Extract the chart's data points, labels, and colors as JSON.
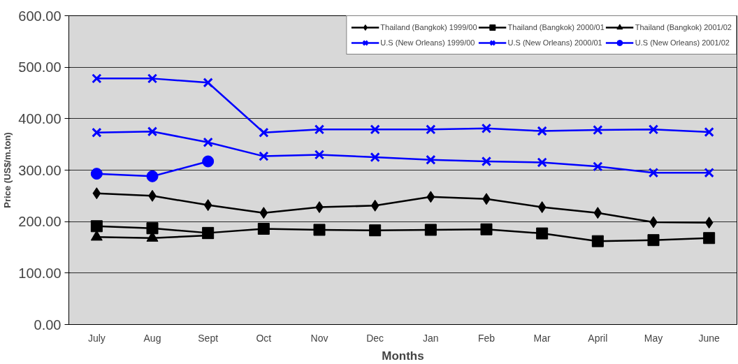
{
  "chart_data": {
    "type": "line",
    "xlabel": "Months",
    "ylabel": "Price (US$/m.ton)",
    "categories": [
      "July",
      "Aug",
      "Sept",
      "Oct",
      "Nov",
      "Dec",
      "Jan",
      "Feb",
      "Mar",
      "April",
      "May",
      "June"
    ],
    "series": [
      {
        "name": "Thailand (Bangkok) 1999/00",
        "color": "#000000",
        "marker": "diamond",
        "values": [
          255,
          250,
          232,
          217,
          228,
          231,
          248,
          244,
          228,
          217,
          199,
          198
        ]
      },
      {
        "name": "Thailand (Bangkok) 2000/01",
        "color": "#000000",
        "marker": "square",
        "values": [
          191,
          187,
          178,
          186,
          184,
          183,
          184,
          185,
          177,
          162,
          164,
          168
        ]
      },
      {
        "name": "Thailand (Bangkok) 2001/02",
        "color": "#000000",
        "marker": "triangle",
        "values": [
          170,
          168,
          173,
          null,
          null,
          null,
          null,
          null,
          null,
          null,
          null,
          null
        ]
      },
      {
        "name": "U.S (New Orleans) 1999/00",
        "color": "#0000ff",
        "marker": "cross",
        "values": [
          478,
          478,
          470,
          373,
          379,
          379,
          379,
          381,
          376,
          378,
          379,
          374
        ]
      },
      {
        "name": "U.S (New Orleans) 2000/01",
        "color": "#0000ff",
        "marker": "cross",
        "values": [
          373,
          375,
          354,
          327,
          330,
          325,
          320,
          317,
          315,
          307,
          295,
          295
        ]
      },
      {
        "name": "U.S (New Orleans) 2001/02",
        "color": "#0000ff",
        "marker": "circle",
        "values": [
          293,
          288,
          317,
          null,
          null,
          null,
          null,
          null,
          null,
          null,
          null,
          null
        ]
      }
    ],
    "ylim": [
      0,
      600
    ],
    "yticks": [
      {
        "value": 0,
        "label": "0.00"
      },
      {
        "value": 100,
        "label": "100.00"
      },
      {
        "value": 200,
        "label": "200.00"
      },
      {
        "value": 300,
        "label": "300.00"
      },
      {
        "value": 400,
        "label": "400.00"
      },
      {
        "value": 500,
        "label": "500.00"
      },
      {
        "value": 600,
        "label": "600.00"
      }
    ],
    "grid": "y",
    "legend": "top right",
    "line_style": "solid"
  }
}
